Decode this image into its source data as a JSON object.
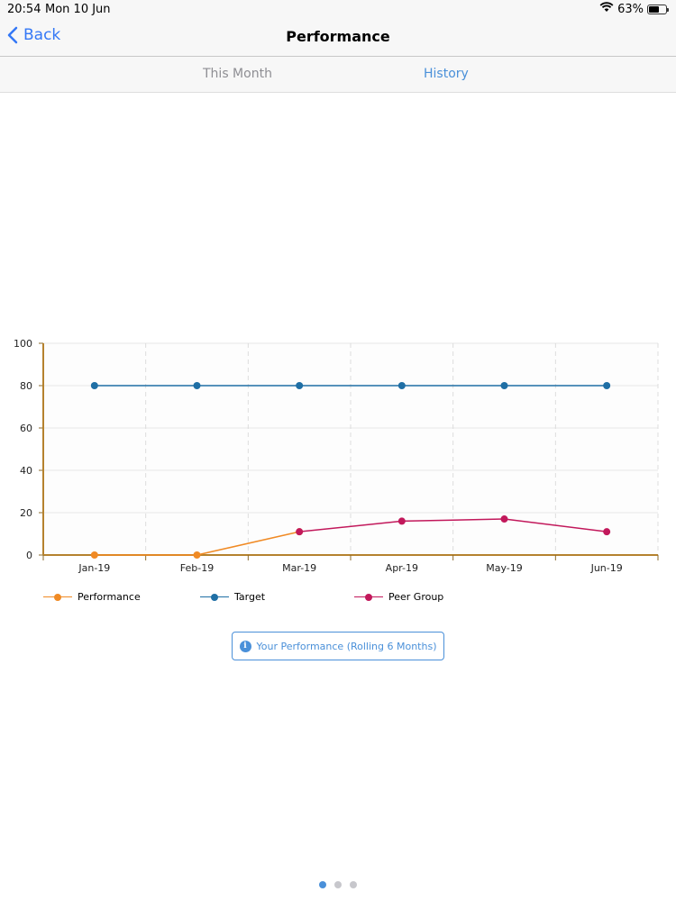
{
  "status_bar": {
    "time": "20:54",
    "date": "Mon 10 Jun",
    "battery": "63%",
    "battery_level": 0.63
  },
  "nav": {
    "back_label": "Back",
    "title": "Performance"
  },
  "segments": [
    {
      "label": "This Month",
      "selected": false
    },
    {
      "label": "History",
      "selected": true
    }
  ],
  "chart_data": {
    "type": "line",
    "categories": [
      "Jan-19",
      "Feb-19",
      "Mar-19",
      "Apr-19",
      "May-19",
      "Jun-19"
    ],
    "ylim": [
      0,
      100
    ],
    "yticks": [
      "0",
      "20",
      "40",
      "60",
      "80",
      "100"
    ],
    "grid": true,
    "legend_position": "bottom-left",
    "series": [
      {
        "name": "Performance",
        "color": "#f08a24",
        "values": [
          0,
          0,
          11,
          null,
          null,
          null
        ]
      },
      {
        "name": "Target",
        "color": "#1f6fa5",
        "values": [
          80,
          80,
          80,
          80,
          80,
          80
        ]
      },
      {
        "name": "Peer Group",
        "color": "#c2185b",
        "values": [
          null,
          null,
          11,
          16,
          17,
          11
        ]
      }
    ]
  },
  "info_button": {
    "label": "Your Performance (Rolling 6 Months)",
    "icon": "info-icon"
  },
  "page_indicator": {
    "count": 3,
    "current": 1
  }
}
